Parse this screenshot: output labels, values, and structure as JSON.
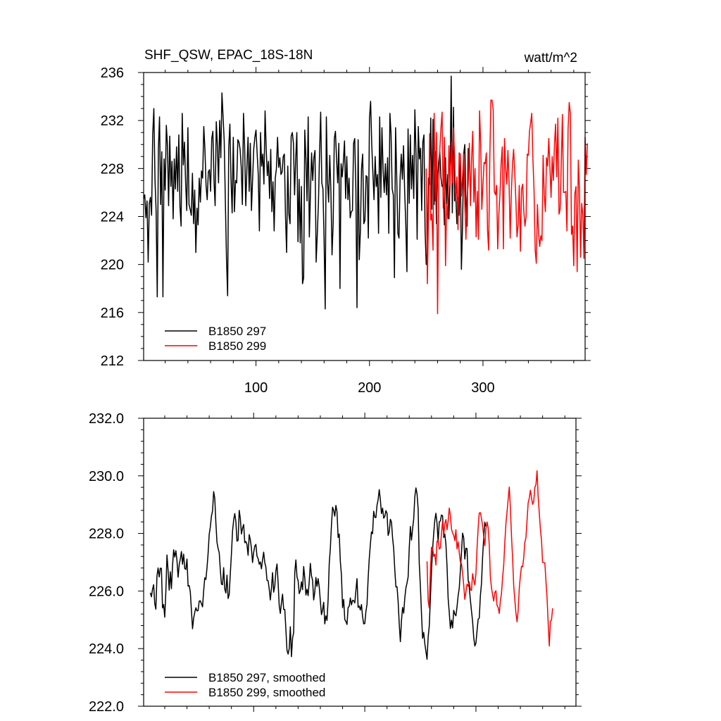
{
  "chart_data": [
    {
      "type": "line",
      "title": "SHF_QSW, EPAC_18S-18N",
      "units": "watt/m^2",
      "xlabel": "",
      "ylabel": "",
      "xlim": [
        1,
        390
      ],
      "ylim": [
        212,
        236
      ],
      "yticks": [
        212,
        216,
        220,
        224,
        228,
        232,
        236
      ],
      "ytick_labels": [
        "212",
        "216",
        "220",
        "224",
        "228",
        "232",
        "236"
      ],
      "xticks": [
        100,
        200,
        300
      ],
      "xtick_labels": [
        "100",
        "200",
        "300"
      ],
      "legend_position": "bottom-left",
      "series": [
        {
          "name": "B1850 297",
          "color": "#000000",
          "x_start": 1,
          "values": [
            225.5,
            225.8,
            223.9,
            225.3,
            220.2,
            225.1,
            225.6,
            224.1,
            230.8,
            233.0,
            227.1,
            224.4,
            217.3,
            229.6,
            232.3,
            225.0,
            229.4,
            217.3,
            228.8,
            226.2,
            231.6,
            229.9,
            224.9,
            230.7,
            226.5,
            228.6,
            223.8,
            228.8,
            226.3,
            229.8,
            226.1,
            230.8,
            224.9,
            223.2,
            232.6,
            228.3,
            230.2,
            226.8,
            224.5,
            231.4,
            225.0,
            224.6,
            224.1,
            227.6,
            223.4,
            226.2,
            221.0,
            224.7,
            223.3,
            227.2,
            225.2,
            227.8,
            227.2,
            231.5,
            229.6,
            226.6,
            225.4,
            227.7,
            227.9,
            226.1,
            230.5,
            231.1,
            227.0,
            224.9,
            231.9,
            229.9,
            226.8,
            232.0,
            228.9,
            234.3,
            232.3,
            230.3,
            225.3,
            220.5,
            217.4,
            229.8,
            231.7,
            227.1,
            224.3,
            230.6,
            224.4,
            227.0,
            226.8,
            230.4,
            230.2,
            229.6,
            228.1,
            225.0,
            232.6,
            229.8,
            224.9,
            228.1,
            230.6,
            226.1,
            230.1,
            224.5,
            227.1,
            229.6,
            230.6,
            231.2,
            229.3,
            227.5,
            222.8,
            231.0,
            228.2,
            229.2,
            226.7,
            232.8,
            229.6,
            227.4,
            228.6,
            225.5,
            229.6,
            224.4,
            226.9,
            222.8,
            227.2,
            228.0,
            230.6,
            228.1,
            228.9,
            227.5,
            227.7,
            229.0,
            229.2,
            224.0,
            221.0,
            228.2,
            224.2,
            223.4,
            230.7,
            231.0,
            230.1,
            225.8,
            228.8,
            231.0,
            221.9,
            227.1,
            221.8,
            226.5,
            218.4,
            218.9,
            231.2,
            228.8,
            225.3,
            232.3,
            222.3,
            226.0,
            229.3,
            227.0,
            228.9,
            229.5,
            220.2,
            222.5,
            225.0,
            229.2,
            232.7,
            226.8,
            226.3,
            222.1,
            216.3,
            232.3,
            226.9,
            225.2,
            229.1,
            226.1,
            220.8,
            223.4,
            230.5,
            231.1,
            228.8,
            226.8,
            230.1,
            218.0,
            228.4,
            227.3,
            228.6,
            230.3,
            225.5,
            229.0,
            225.4,
            227.2,
            223.9,
            224.4,
            224.5,
            230.1,
            230.5,
            226.3,
            216.4,
            230.4,
            220.4,
            222.8,
            228.0,
            229.2,
            223.4,
            223.7,
            227.4,
            227.3,
            222.2,
            232.2,
            233.6,
            230.0,
            227.6,
            225.4,
            229.0,
            226.5,
            227.5,
            222.6,
            232.3,
            225.6,
            231.4,
            227.9,
            226.0,
            228.4,
            225.8,
            228.9,
            222.6,
            232.6,
            230.9,
            226.3,
            225.8,
            218.9,
            231.4,
            227.3,
            222.6,
            222.2,
            227.2,
            229.2,
            227.1,
            229.9,
            226.1,
            223.4,
            219.4,
            231.3,
            225.1,
            230.8,
            226.3,
            229.1,
            225.5,
            232.9,
            229.3,
            222.1,
            231.5,
            228.8,
            229.7,
            224.5,
            230.2,
            230.8,
            222.8,
            220.0,
            221.1,
            227.2,
            226.7,
            232.2,
            224.6,
            232.1,
            225.0,
            229.4,
            223.4,
            227.4,
            228.6,
            229.4,
            227.2,
            226.5,
            226.6,
            223.3,
            228.9,
            225.0,
            227.5,
            223.8,
            227.0,
            235.7,
            224.3,
            233.1,
            225.3,
            226.0,
            223.4,
            225.6,
            224.1,
            229.0,
            219.6,
            223.2,
            229.2,
            230.0,
            225.1,
            223.2,
            229.7
          ]
        },
        {
          "name": "B1850 299",
          "color": "#ff0000",
          "x_start": 250,
          "values": [
            228.0,
            218.4,
            224.1,
            230.9,
            223.7,
            224.2,
            221.2,
            232.6,
            225.3,
            231.0,
            215.9,
            226.4,
            229.6,
            231.4,
            232.7,
            224.7,
            230.6,
            219.9,
            225.0,
            223.8,
            229.9,
            226.6,
            230.2,
            226.8,
            231.4,
            229.0,
            225.3,
            227.3,
            222.9,
            229.3,
            229.2,
            225.7,
            227.3,
            229.2,
            225.2,
            222.1,
            225.5,
            226.7,
            230.1,
            224.9,
            228.9,
            231.1,
            225.2,
            228.0,
            222.3,
            226.1,
            222.1,
            232.8,
            230.1,
            224.6,
            226.7,
            228.5,
            228.4,
            229.3,
            222.9,
            221.2,
            228.7,
            233.7,
            233.7,
            232.9,
            226.1,
            225.8,
            226.6,
            221.3,
            224.2,
            225.9,
            228.4,
            229.8,
            221.3,
            230.5,
            228.0,
            226.7,
            229.5,
            226.8,
            222.2,
            226.0,
            228.3,
            229.6,
            227.7,
            225.3,
            222.3,
            223.3,
            226.6,
            221.1,
            226.3,
            226.7,
            224.4,
            223.2,
            224.0,
            229.2,
            229.1,
            231.1,
            231.8,
            232.6,
            228.8,
            226.2,
            221.2,
            220.1,
            225.0,
            222.6,
            221.5,
            222.4,
            222.0,
            229.1,
            225.8,
            224.4,
            228.9,
            228.2,
            230.5,
            228.1,
            225.6,
            229.0,
            227.0,
            230.0,
            231.7,
            227.3,
            232.2,
            224.2,
            224.6,
            228.4,
            232.5,
            226.0,
            226.0,
            226.1,
            222.8,
            231.3,
            233.5,
            232.6,
            222.5,
            223.2,
            219.9,
            225.9,
            226.5,
            219.4,
            228.7,
            226.3,
            220.6,
            225.1,
            224.2,
            220.5,
            230.6,
            227.5,
            230.1
          ]
        }
      ]
    },
    {
      "type": "line",
      "title": "",
      "xlabel": "",
      "ylabel": "",
      "xlim": [
        1,
        390
      ],
      "ylim": [
        222.0,
        232.0
      ],
      "yticks": [
        222,
        224,
        226,
        228,
        230,
        232
      ],
      "ytick_labels": [
        "222.0",
        "224.0",
        "226.0",
        "228.0",
        "230.0",
        "232.0"
      ],
      "xticks": [
        100,
        200,
        300
      ],
      "legend_position": "bottom-left",
      "series": [
        {
          "name": "B1850 297, smoothed",
          "color": "#000000",
          "x_start": 7,
          "values": [
            225.94,
            225.8,
            226.06,
            226.22,
            225.56,
            225.37,
            226.52,
            226.8,
            226.49,
            226.79,
            226.79,
            225.41,
            225.53,
            225.09,
            225.99,
            227.25,
            226.72,
            226.03,
            226.67,
            226.08,
            226.88,
            227.43,
            227.18,
            227.4,
            227.06,
            226.48,
            226.91,
            227.11,
            227.37,
            226.93,
            227.28,
            226.78,
            226.75,
            227.11,
            226.17,
            226.19,
            225.97,
            225.33,
            224.69,
            225.06,
            225.26,
            225.42,
            225.31,
            225.32,
            225.65,
            225.66,
            225.56,
            225.45,
            226.0,
            226.46,
            226.4,
            226.8,
            227.3,
            227.97,
            228.22,
            228.6,
            228.78,
            229.45,
            229.22,
            228.37,
            227.69,
            227.48,
            227.33,
            226.74,
            226.24,
            226.22,
            226.81,
            226.07,
            225.93,
            226.55,
            225.74,
            225.88,
            226.61,
            227.29,
            228.08,
            228.46,
            228.69,
            228.41,
            227.73,
            227.76,
            228.8,
            228.52,
            227.98,
            228.19,
            228.31,
            227.68,
            227.72,
            227.61,
            227.24,
            227.96,
            227.78,
            227.48,
            226.99,
            227.34,
            227.56,
            227.62,
            227.21,
            227.13,
            226.93,
            227.01,
            226.77,
            227.08,
            227.35,
            226.99,
            226.83,
            226.37,
            226.36,
            226.07,
            225.69,
            226.1,
            226.64,
            225.96,
            226.17,
            226.7,
            226.94,
            226.29,
            225.49,
            225.22,
            225.59,
            225.89,
            225.36,
            225.36,
            224.66,
            223.94,
            223.81,
            224.0,
            224.76,
            223.72,
            224.36,
            224.56,
            226.65,
            227.08,
            226.49,
            226.36,
            225.91,
            226.01,
            226.32,
            226.05,
            226.85,
            226.45,
            225.86,
            226.06,
            225.84,
            226.33,
            226.96,
            226.53,
            226.38,
            225.69,
            225.96,
            226.47,
            226.16,
            226.43,
            226.14,
            225.66,
            225.18,
            225.34,
            225.61,
            224.86,
            225.14,
            224.98,
            225.71,
            226.95,
            227.48,
            228.29,
            228.91,
            228.8,
            228.6,
            228.97,
            228.75,
            227.86,
            227.98,
            227.02,
            226.55,
            225.42,
            225.71,
            225.01,
            224.94,
            224.84,
            225.43,
            225.47,
            225.76,
            225.52,
            225.68,
            225.66,
            225.59,
            226.02,
            226.43,
            225.43,
            225.48,
            225.34,
            225.53,
            225.11,
            224.86,
            224.87,
            225.29,
            225.54,
            226.43,
            227.12,
            227.61,
            228.05,
            227.99,
            228.77,
            228.56,
            228.55,
            228.98,
            229.17,
            229.52,
            229.17,
            228.69,
            228.88,
            228.53,
            228.59,
            228.79,
            228.7,
            227.93,
            228.06,
            228.49,
            228.4,
            227.85,
            227.47,
            226.73,
            226.14,
            226.15,
            225.63,
            224.86,
            224.24,
            224.97,
            225.43,
            225.23,
            225.76,
            226.11,
            226.28,
            226.49,
            227.49,
            228.24,
            227.77,
            228.16,
            228.5,
            229.27,
            229.58,
            229.38,
            228.85,
            226.97,
            226.19,
            225.23,
            224.36,
            224.56,
            224.18,
            223.9,
            223.63,
            224.39,
            224.78,
            225.71,
            226.7,
            227.45,
            227.99,
            228.46,
            228.7,
            228.35,
            227.7,
            228.4,
            228.43,
            228.64,
            228.61,
            227.86,
            227.98,
            227.62,
            226.86,
            225.74,
            225.26,
            224.7,
            224.99,
            224.72,
            225.33,
            225.2,
            225.14,
            225.46,
            225.84,
            226.1,
            226.71,
            227.35,
            228.01,
            227.85,
            227.11,
            227.49,
            227.47,
            226.39,
            226.12,
            225.69,
            225.31,
            224.95,
            224.39,
            224.09,
            224.19,
            224.62,
            225.02,
            225.06,
            225.84,
            226.26,
            227.17,
            227.84,
            228.39,
            228.24
          ]
        },
        {
          "name": "B1850 299, smoothed",
          "color": "#ff0000",
          "x_start": 256,
          "values": [
            227.03,
            225.68,
            225.41,
            226.65,
            227.52,
            227.5,
            227.2,
            227.28,
            226.9,
            227.73,
            227.76,
            227.46,
            227.49,
            228.02,
            228.43,
            227.92,
            228.34,
            228.48,
            228.13,
            228.42,
            228.88,
            228.62,
            228.15,
            228.01,
            227.94,
            227.75,
            228.13,
            227.46,
            227.71,
            227.33,
            227.0,
            226.95,
            226.63,
            226.2,
            225.71,
            225.97,
            226.24,
            226.17,
            226.32,
            226.06,
            226.02,
            226.6,
            226.38,
            226.21,
            226.6,
            227.48,
            228.19,
            228.71,
            228.72,
            228.52,
            228.27,
            227.9,
            227.57,
            228.16,
            228.4,
            228.19,
            227.6,
            226.49,
            226.11,
            225.87,
            225.65,
            225.95,
            226.01,
            225.5,
            225.43,
            225.22,
            225.66,
            225.92,
            226.47,
            226.89,
            227.69,
            228.34,
            228.75,
            229.18,
            229.61,
            228.89,
            227.91,
            227.14,
            226.18,
            225.69,
            225.24,
            224.93,
            225.32,
            226.09,
            226.52,
            226.86,
            226.84,
            227.15,
            227.69,
            227.85,
            228.46,
            229.06,
            229.22,
            229.5,
            229.24,
            229.01,
            229.1,
            229.6,
            229.69,
            230.18,
            229.27,
            228.71,
            228.15,
            227.76,
            226.99,
            226.98,
            226.98,
            226.35,
            225.76,
            224.89,
            224.09,
            224.95,
            224.99,
            225.4
          ]
        }
      ]
    }
  ]
}
